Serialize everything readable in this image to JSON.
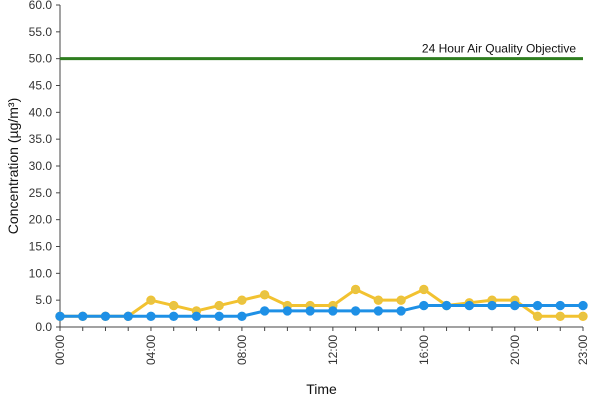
{
  "chart_data": {
    "type": "line",
    "title": "",
    "xlabel": "Time",
    "ylabel": "Concentration (µg/m³)",
    "ylim": [
      0,
      60
    ],
    "y_ticks": [
      "0.0",
      "5.0",
      "10.0",
      "15.0",
      "20.0",
      "25.0",
      "30.0",
      "35.0",
      "40.0",
      "45.0",
      "50.0",
      "55.0",
      "60.0"
    ],
    "x_tick_labels": [
      {
        "hour": 0,
        "label": "00:00"
      },
      {
        "hour": 4,
        "label": "04:00"
      },
      {
        "hour": 8,
        "label": "08:00"
      },
      {
        "hour": 12,
        "label": "12:00"
      },
      {
        "hour": 16,
        "label": "16:00"
      },
      {
        "hour": 20,
        "label": "20:00"
      },
      {
        "hour": 23,
        "label": "23:00"
      }
    ],
    "x": [
      0,
      1,
      2,
      3,
      4,
      5,
      6,
      7,
      8,
      9,
      10,
      11,
      12,
      13,
      14,
      15,
      16,
      17,
      18,
      19,
      20,
      21,
      22,
      23
    ],
    "grid": false,
    "objective_line": {
      "value": 50,
      "label": "24 Hour Air Quality Objective",
      "color": "#2e7d1f"
    },
    "series": [
      {
        "color": "#f2c230",
        "marker_fill": "#e8c443",
        "values": [
          2,
          2,
          2,
          2,
          5,
          4,
          3,
          4,
          5,
          6,
          4,
          4,
          4,
          7,
          5,
          5,
          7,
          4,
          4.5,
          5,
          5,
          2,
          2,
          2
        ]
      },
      {
        "color": "#1e90e6",
        "marker_fill": "#1e90e6",
        "values": [
          2,
          2,
          2,
          2,
          2,
          2,
          2,
          2,
          2,
          3,
          3,
          3,
          3,
          3,
          3,
          3,
          4,
          4,
          4,
          4,
          4,
          4,
          4,
          4
        ]
      }
    ]
  }
}
